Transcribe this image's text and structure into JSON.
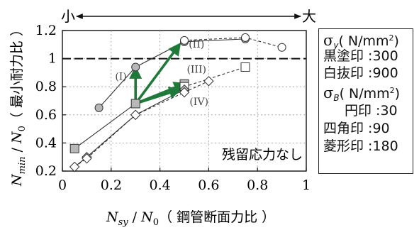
{
  "chart_data": {
    "type": "line",
    "xlabel_var": "N",
    "xlabel_sub": "sy",
    "xlabel_den_var": "N",
    "xlabel_den_sub": "0",
    "xlabel_text": "（ 鋼管断面力比 ）",
    "ylabel_var": "N",
    "ylabel_sub": "min",
    "ylabel_den_var": "N",
    "ylabel_den_sub": "0",
    "ylabel_text": "（ 最小耐力比 ）",
    "xlim": [
      0,
      1
    ],
    "ylim": [
      0.2,
      1.2
    ],
    "xticks": [
      "0",
      "0.2",
      "0.4",
      "0.6",
      "0.8",
      "1"
    ],
    "yticks": [
      "0.2",
      "0.4",
      "0.6",
      "0.8",
      "1",
      "1.2"
    ],
    "top_arrow_left": "小",
    "top_arrow_right": "大",
    "reference_line_y": 1.0,
    "annotation": "残留応力なし",
    "series": [
      {
        "marker": "circle",
        "fill": "#b8b8b8",
        "line": "solid",
        "x": [
          0.15,
          0.3,
          0.5,
          0.75
        ],
        "y": [
          0.65,
          0.94,
          1.12,
          1.14
        ]
      },
      {
        "marker": "circle",
        "fill": "#ffffff",
        "line": "dashed",
        "x": [
          0.5,
          0.75,
          0.9
        ],
        "y": [
          1.13,
          1.15,
          1.08
        ]
      },
      {
        "marker": "square",
        "fill": "#b8b8b8",
        "line": "solid",
        "x": [
          0.05,
          0.3,
          0.5
        ],
        "y": [
          0.36,
          0.68,
          0.82
        ]
      },
      {
        "marker": "square",
        "fill": "#ffffff",
        "line": "dashed",
        "x": [
          0.5,
          0.75
        ],
        "y": [
          0.8,
          0.94
        ]
      },
      {
        "marker": "diamond",
        "fill": "#b8b8b8",
        "line": "solid",
        "x": [
          0.05,
          0.1,
          0.3,
          0.5
        ],
        "y": [
          0.23,
          0.3,
          0.6,
          0.78
        ]
      },
      {
        "marker": "diamond",
        "fill": "#ffffff",
        "line": "dashed",
        "x": [
          0.05,
          0.1,
          0.3,
          0.5,
          0.6
        ],
        "y": [
          0.23,
          0.29,
          0.6,
          0.76,
          0.84
        ]
      }
    ],
    "arrows": [
      {
        "from": [
          0.3,
          0.68
        ],
        "to": [
          0.3,
          0.93
        ]
      },
      {
        "from": [
          0.3,
          0.68
        ],
        "to": [
          0.48,
          1.1
        ]
      },
      {
        "from": [
          0.3,
          0.68
        ],
        "to": [
          0.5,
          0.82
        ]
      },
      {
        "from": [
          0.3,
          0.68
        ],
        "to": [
          0.48,
          0.78
        ]
      }
    ],
    "arrow_color": "#1f7a3a",
    "case_labels": [
      {
        "text": "(I)",
        "x": 0.24,
        "y": 0.85
      },
      {
        "text": "(II)",
        "x": 0.55,
        "y": 1.08
      },
      {
        "text": "(III)",
        "x": 0.55,
        "y": 0.9
      },
      {
        "text": "(IV)",
        "x": 0.56,
        "y": 0.67
      }
    ]
  },
  "legend": {
    "sy_sym": "σ",
    "sy_sub": "y",
    "sy_unit_a": "( N/mm",
    "sy_unit_sup": "2",
    "sy_unit_b": ")",
    "black": "黒塗印 :300",
    "white": "白抜印 :900",
    "sb_sym": "σ",
    "sb_sub": "B",
    "sb_unit_a": "( N/mm",
    "sb_unit_sup": "2",
    "sb_unit_b": ")",
    "circle": "円印 :30",
    "square": "四角印 :90",
    "diamond": "菱形印 :180"
  }
}
